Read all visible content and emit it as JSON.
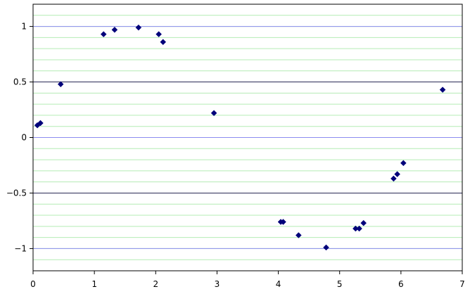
{
  "chart_data": {
    "type": "scatter",
    "title": "",
    "xlabel": "",
    "ylabel": "",
    "xlim": [
      0,
      7
    ],
    "ylim": [
      -1.2,
      1.2
    ],
    "x_ticks": [
      0,
      1,
      2,
      3,
      4,
      5,
      6,
      7
    ],
    "x_tick_labels": [
      "0",
      "1",
      "2",
      "3",
      "4",
      "5",
      "6",
      "7"
    ],
    "y_ticks": [
      1,
      0.5,
      0,
      -0.5,
      -1
    ],
    "y_tick_labels": [
      "1",
      "0.5",
      "0",
      "−0.5",
      "−1"
    ],
    "minor_grid_step": 0.1,
    "grid": true,
    "marker": "diamond",
    "colors": {
      "marker": "#00007a",
      "minor_grid": "#b4ecb4",
      "major_grid_blue": "#8c8cf0",
      "major_grid_dark": "#2a2a55",
      "axes": "#000000"
    },
    "series": [
      {
        "points": [
          [
            0.07,
            0.11
          ],
          [
            0.12,
            0.13
          ],
          [
            0.45,
            0.48
          ],
          [
            1.15,
            0.93
          ],
          [
            1.33,
            0.97
          ],
          [
            1.72,
            0.99
          ],
          [
            2.05,
            0.93
          ],
          [
            2.12,
            0.86
          ],
          [
            2.95,
            0.22
          ],
          [
            4.04,
            -0.76
          ],
          [
            4.08,
            -0.76
          ],
          [
            4.33,
            -0.88
          ],
          [
            4.78,
            -0.99
          ],
          [
            5.26,
            -0.82
          ],
          [
            5.32,
            -0.82
          ],
          [
            5.39,
            -0.77
          ],
          [
            5.88,
            -0.37
          ],
          [
            5.94,
            -0.33
          ],
          [
            6.04,
            -0.23
          ],
          [
            6.68,
            0.43
          ]
        ]
      }
    ]
  }
}
